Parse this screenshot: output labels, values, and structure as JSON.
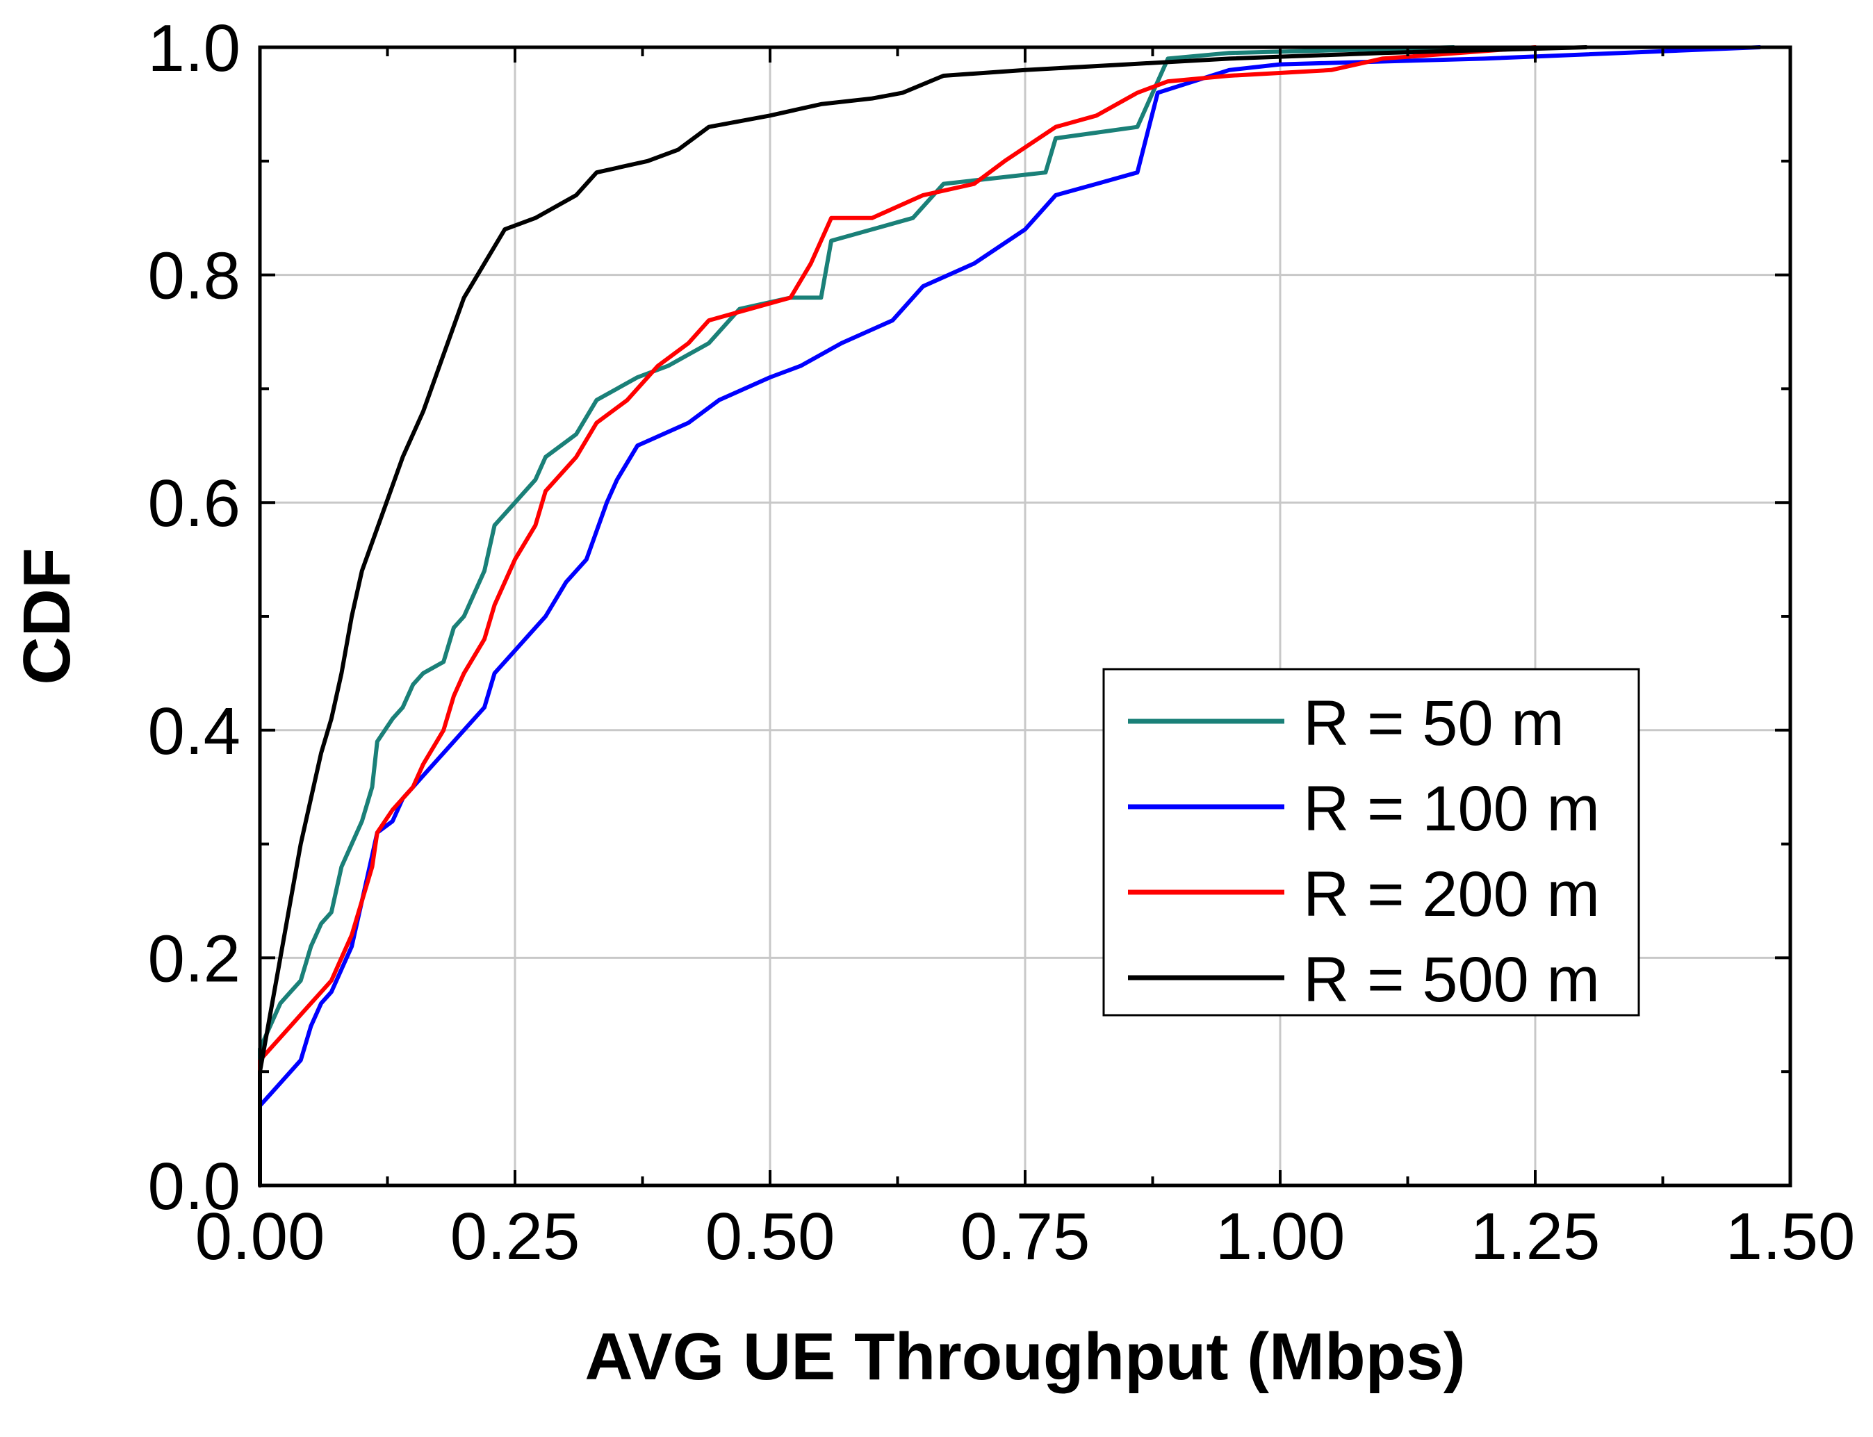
{
  "chart_data": {
    "type": "line",
    "title": "",
    "xlabel": "AVG UE Throughput (Mbps)",
    "ylabel": "CDF",
    "xlim": [
      0,
      1.5
    ],
    "ylim": [
      0,
      1.0
    ],
    "grid": true,
    "legend_position": "center-right",
    "x_ticks": [
      0,
      0.25,
      0.5,
      0.75,
      1.0,
      1.25,
      1.5
    ],
    "x_tick_labels": [
      "0.00",
      "0.25",
      "0.50",
      "0.75",
      "1.00",
      "1.25",
      "1.50"
    ],
    "y_ticks": [
      0,
      0.2,
      0.4,
      0.6,
      0.8,
      1.0
    ],
    "y_tick_labels": [
      "0.0",
      "0.2",
      "0.4",
      "0.6",
      "0.8",
      "1.0"
    ],
    "series": [
      {
        "name": "R = 50 m",
        "color": "#1a8078",
        "points": [
          [
            0,
            0
          ],
          [
            0,
            0.12
          ],
          [
            0.01,
            0.14
          ],
          [
            0.02,
            0.16
          ],
          [
            0.03,
            0.17
          ],
          [
            0.04,
            0.18
          ],
          [
            0.05,
            0.21
          ],
          [
            0.06,
            0.23
          ],
          [
            0.07,
            0.24
          ],
          [
            0.08,
            0.28
          ],
          [
            0.09,
            0.3
          ],
          [
            0.1,
            0.32
          ],
          [
            0.11,
            0.35
          ],
          [
            0.115,
            0.39
          ],
          [
            0.13,
            0.41
          ],
          [
            0.14,
            0.42
          ],
          [
            0.15,
            0.44
          ],
          [
            0.16,
            0.45
          ],
          [
            0.18,
            0.46
          ],
          [
            0.19,
            0.49
          ],
          [
            0.2,
            0.5
          ],
          [
            0.21,
            0.52
          ],
          [
            0.22,
            0.54
          ],
          [
            0.23,
            0.58
          ],
          [
            0.25,
            0.6
          ],
          [
            0.27,
            0.62
          ],
          [
            0.28,
            0.64
          ],
          [
            0.31,
            0.66
          ],
          [
            0.33,
            0.69
          ],
          [
            0.37,
            0.71
          ],
          [
            0.4,
            0.72
          ],
          [
            0.44,
            0.74
          ],
          [
            0.45,
            0.75
          ],
          [
            0.47,
            0.77
          ],
          [
            0.52,
            0.78
          ],
          [
            0.55,
            0.78
          ],
          [
            0.56,
            0.83
          ],
          [
            0.6,
            0.84
          ],
          [
            0.64,
            0.85
          ],
          [
            0.67,
            0.88
          ],
          [
            0.77,
            0.89
          ],
          [
            0.78,
            0.92
          ],
          [
            0.86,
            0.93
          ],
          [
            0.89,
            0.99
          ],
          [
            0.95,
            0.995
          ],
          [
            1.17,
            1.0
          ]
        ]
      },
      {
        "name": "R = 100 m",
        "color": "#0000ff",
        "points": [
          [
            0,
            0
          ],
          [
            0,
            0.07
          ],
          [
            0.01,
            0.08
          ],
          [
            0.03,
            0.1
          ],
          [
            0.04,
            0.11
          ],
          [
            0.05,
            0.14
          ],
          [
            0.06,
            0.16
          ],
          [
            0.07,
            0.17
          ],
          [
            0.08,
            0.19
          ],
          [
            0.09,
            0.21
          ],
          [
            0.1,
            0.25
          ],
          [
            0.11,
            0.29
          ],
          [
            0.115,
            0.31
          ],
          [
            0.13,
            0.32
          ],
          [
            0.14,
            0.34
          ],
          [
            0.15,
            0.35
          ],
          [
            0.16,
            0.36
          ],
          [
            0.18,
            0.38
          ],
          [
            0.2,
            0.4
          ],
          [
            0.22,
            0.42
          ],
          [
            0.23,
            0.45
          ],
          [
            0.25,
            0.47
          ],
          [
            0.28,
            0.5
          ],
          [
            0.3,
            0.53
          ],
          [
            0.32,
            0.55
          ],
          [
            0.34,
            0.6
          ],
          [
            0.35,
            0.62
          ],
          [
            0.37,
            0.65
          ],
          [
            0.42,
            0.67
          ],
          [
            0.45,
            0.69
          ],
          [
            0.5,
            0.71
          ],
          [
            0.53,
            0.72
          ],
          [
            0.57,
            0.74
          ],
          [
            0.62,
            0.76
          ],
          [
            0.65,
            0.79
          ],
          [
            0.7,
            0.81
          ],
          [
            0.75,
            0.84
          ],
          [
            0.78,
            0.87
          ],
          [
            0.82,
            0.88
          ],
          [
            0.86,
            0.89
          ],
          [
            0.88,
            0.96
          ],
          [
            0.95,
            0.98
          ],
          [
            1.0,
            0.985
          ],
          [
            1.2,
            0.99
          ],
          [
            1.47,
            1.0
          ]
        ]
      },
      {
        "name": "R = 200 m",
        "color": "#ff0000",
        "points": [
          [
            0,
            0
          ],
          [
            0,
            0.11
          ],
          [
            0.01,
            0.12
          ],
          [
            0.03,
            0.14
          ],
          [
            0.04,
            0.15
          ],
          [
            0.05,
            0.16
          ],
          [
            0.07,
            0.18
          ],
          [
            0.08,
            0.2
          ],
          [
            0.09,
            0.22
          ],
          [
            0.1,
            0.25
          ],
          [
            0.11,
            0.28
          ],
          [
            0.115,
            0.31
          ],
          [
            0.13,
            0.33
          ],
          [
            0.15,
            0.35
          ],
          [
            0.16,
            0.37
          ],
          [
            0.18,
            0.4
          ],
          [
            0.19,
            0.43
          ],
          [
            0.2,
            0.45
          ],
          [
            0.22,
            0.48
          ],
          [
            0.23,
            0.51
          ],
          [
            0.25,
            0.55
          ],
          [
            0.27,
            0.58
          ],
          [
            0.28,
            0.61
          ],
          [
            0.31,
            0.64
          ],
          [
            0.33,
            0.67
          ],
          [
            0.36,
            0.69
          ],
          [
            0.39,
            0.72
          ],
          [
            0.42,
            0.74
          ],
          [
            0.44,
            0.76
          ],
          [
            0.48,
            0.77
          ],
          [
            0.52,
            0.78
          ],
          [
            0.54,
            0.81
          ],
          [
            0.56,
            0.85
          ],
          [
            0.6,
            0.85
          ],
          [
            0.65,
            0.87
          ],
          [
            0.7,
            0.88
          ],
          [
            0.73,
            0.9
          ],
          [
            0.78,
            0.93
          ],
          [
            0.82,
            0.94
          ],
          [
            0.86,
            0.96
          ],
          [
            0.89,
            0.97
          ],
          [
            0.95,
            0.975
          ],
          [
            1.05,
            0.98
          ],
          [
            1.1,
            0.99
          ],
          [
            1.25,
            1.0
          ]
        ]
      },
      {
        "name": "R = 500 m",
        "color": "#000000",
        "points": [
          [
            0,
            0
          ],
          [
            0,
            0.1
          ],
          [
            0.01,
            0.15
          ],
          [
            0.02,
            0.2
          ],
          [
            0.03,
            0.25
          ],
          [
            0.04,
            0.3
          ],
          [
            0.05,
            0.34
          ],
          [
            0.06,
            0.38
          ],
          [
            0.07,
            0.41
          ],
          [
            0.08,
            0.45
          ],
          [
            0.09,
            0.5
          ],
          [
            0.1,
            0.54
          ],
          [
            0.12,
            0.59
          ],
          [
            0.14,
            0.64
          ],
          [
            0.16,
            0.68
          ],
          [
            0.18,
            0.73
          ],
          [
            0.2,
            0.78
          ],
          [
            0.22,
            0.81
          ],
          [
            0.24,
            0.84
          ],
          [
            0.27,
            0.85
          ],
          [
            0.31,
            0.87
          ],
          [
            0.33,
            0.89
          ],
          [
            0.38,
            0.9
          ],
          [
            0.41,
            0.91
          ],
          [
            0.44,
            0.93
          ],
          [
            0.5,
            0.94
          ],
          [
            0.55,
            0.95
          ],
          [
            0.6,
            0.955
          ],
          [
            0.63,
            0.96
          ],
          [
            0.67,
            0.975
          ],
          [
            0.75,
            0.98
          ],
          [
            0.85,
            0.985
          ],
          [
            0.95,
            0.99
          ],
          [
            1.1,
            0.995
          ],
          [
            1.3,
            1.0
          ]
        ]
      }
    ]
  }
}
